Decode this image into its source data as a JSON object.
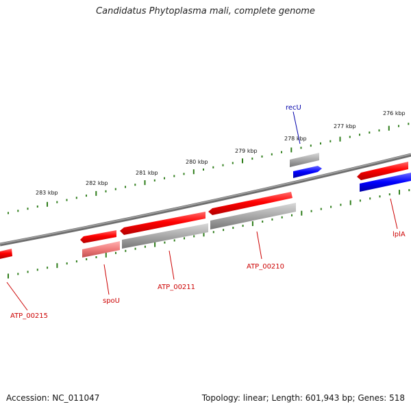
{
  "title": "Candidatus Phytoplasma mali, complete genome",
  "footer": {
    "accession": "Accession: NC_011047",
    "summary": "Topology: linear; Length: 601,943 bp; Genes: 518"
  },
  "ruler": {
    "tick_color": "#2e7d1a",
    "labels": [
      "276 kbp",
      "277 kbp",
      "278 kbp",
      "279 kbp",
      "280 kbp",
      "281 kbp",
      "282 kbp",
      "283 kbp"
    ]
  },
  "backbone_color": "#808080",
  "gene_labels": [
    {
      "text": "recU",
      "color": "#0000aa"
    },
    {
      "text": "lplA",
      "color": "#cc0000"
    },
    {
      "text": "ATP_00210",
      "color": "#cc0000"
    },
    {
      "text": "ATP_00211",
      "color": "#cc0000"
    },
    {
      "text": "spoU",
      "color": "#cc0000"
    },
    {
      "text": "ATP_00215",
      "color": "#cc0000"
    }
  ],
  "colors": {
    "cds_red": "#ff0000",
    "cds_pink": "#f08080",
    "cds_grey": "#a8a8a8",
    "cds_blue": "#0000ff",
    "label_red": "#cc0000",
    "label_blue": "#0000aa"
  }
}
